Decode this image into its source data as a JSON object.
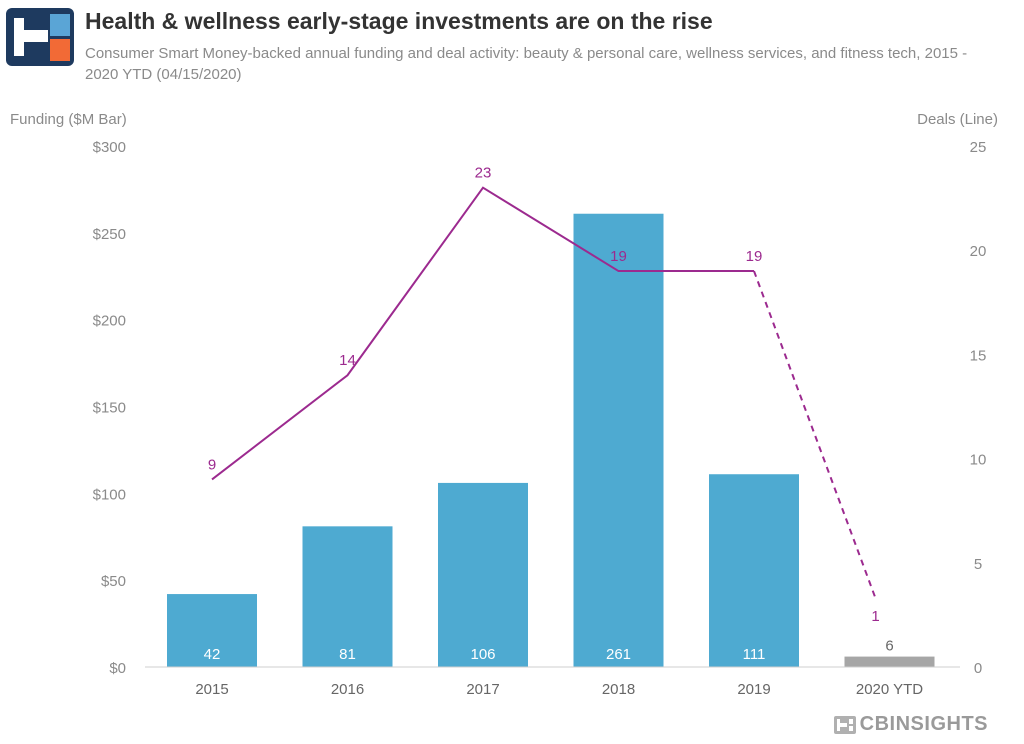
{
  "header": {
    "title": "Health & wellness early-stage investments are on the rise",
    "subtitle": "Consumer Smart Money-backed annual funding and deal activity: beauty & personal care, wellness services, and fitness tech, 2015 - 2020 YTD (04/15/2020)"
  },
  "brand": {
    "name": "CBINSIGHTS"
  },
  "colors": {
    "bar": "#4eaad1",
    "bar_partial": "#a6a6a6",
    "line": "#9c2a8f",
    "axis_text": "#8a8a8a",
    "logo_blue": "#1e3a5f",
    "logo_orange": "#f26a36",
    "logo_light": "#5aa5d6"
  },
  "chart_data": {
    "type": "bar",
    "categories": [
      "2015",
      "2016",
      "2017",
      "2018",
      "2019",
      "2020 YTD"
    ],
    "series": [
      {
        "name": "Funding ($M Bar)",
        "type": "bar",
        "values": [
          42,
          81,
          106,
          261,
          111,
          6
        ]
      },
      {
        "name": "Deals (Line)",
        "type": "line",
        "values": [
          9,
          14,
          23,
          19,
          19,
          1
        ]
      }
    ],
    "bar_labels": [
      "42",
      "81",
      "106",
      "261",
      "111",
      "6"
    ],
    "line_labels": [
      "9",
      "14",
      "23",
      "19",
      "19",
      "1"
    ],
    "ylabel": "Funding ($M Bar)",
    "y2label": "Deals (Line)",
    "ylim": [
      0,
      300
    ],
    "y2lim": [
      0,
      25
    ],
    "yticks": [
      "$0",
      "$50",
      "$100",
      "$150",
      "$200",
      "$250",
      "$300"
    ],
    "y2ticks": [
      "0",
      "5",
      "10",
      "15",
      "20",
      "25"
    ],
    "partial_period": "2020 YTD",
    "grid": false,
    "legend": "none"
  }
}
